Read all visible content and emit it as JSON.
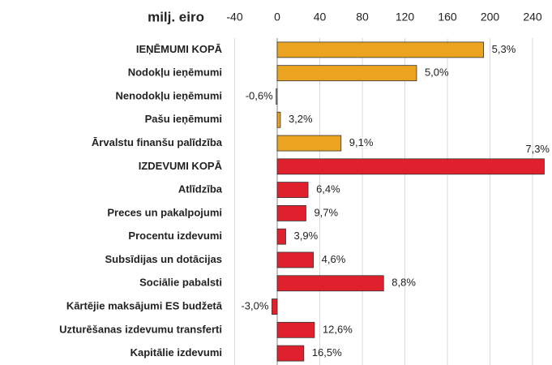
{
  "chart_data": {
    "type": "hbar",
    "xlabel": "milj. eiro",
    "categories": [
      "IEŅĒMUMI KOPĀ",
      "Nodokļu ieņēmumi",
      "Nenodokļu ieņēmumi",
      "Pašu ieņēmumi",
      "Ārvalstu finanšu palīdzība",
      "IZDEVUMI KOPĀ",
      "Atlīdzība",
      "Preces un pakalpojumi",
      "Procentu izdevumi",
      "Subsīdijas un dotācijas",
      "Sociālie pabalsti",
      "Kārtējie maksājumi ES budžetā",
      "Uzturēšanas izdevumu transferti",
      "Kapitālie izdevumi"
    ],
    "values": [
      194,
      131,
      -1,
      3,
      60,
      251,
      29,
      27,
      8,
      34,
      100,
      -5,
      35,
      25
    ],
    "annotations": [
      "5,3%",
      "5,0%",
      "-0,6%",
      "3,2%",
      "9,1%",
      "7,3%",
      "6,4%",
      "9,7%",
      "3,9%",
      "4,6%",
      "8,8%",
      "-3,0%",
      "12,6%",
      "16,5%"
    ],
    "colors": [
      "#eba41f",
      "#eba41f",
      "#eba41f",
      "#eba41f",
      "#eba41f",
      "#e0212d",
      "#e0212d",
      "#e0212d",
      "#e0212d",
      "#e0212d",
      "#e0212d",
      "#e0212d",
      "#e0212d",
      "#e0212d"
    ],
    "xlim": [
      -40,
      255
    ],
    "xticks": [
      -40,
      0,
      40,
      80,
      120,
      160,
      200,
      240
    ],
    "grid": true
  }
}
